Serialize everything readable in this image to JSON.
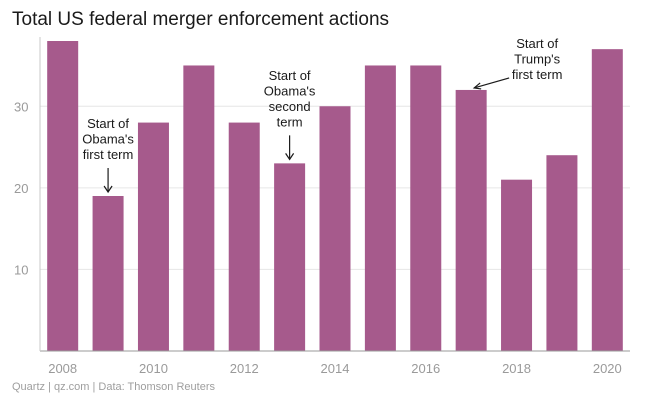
{
  "chart_data": {
    "type": "bar",
    "title": "Total US federal merger enforcement actions",
    "xlabel": "",
    "ylabel": "",
    "categories": [
      "2008",
      "2009",
      "2010",
      "2011",
      "2012",
      "2013",
      "2014",
      "2015",
      "2016",
      "2017",
      "2018",
      "2019",
      "2020"
    ],
    "values": [
      38,
      19,
      28,
      35,
      28,
      23,
      30,
      35,
      35,
      32,
      21,
      24,
      37
    ],
    "ylim": [
      0,
      38
    ],
    "yticks": [
      10,
      20,
      30
    ],
    "xtick_labels": [
      "2008",
      "2010",
      "2012",
      "2014",
      "2016",
      "2018",
      "2020"
    ],
    "grid": true,
    "bar_color": "#a65a8c",
    "annotations": [
      {
        "category": "2009",
        "lines": [
          "Start of",
          "Obama's",
          "first term"
        ],
        "arrow": "down"
      },
      {
        "category": "2013",
        "lines": [
          "Start of",
          "Obama's",
          "second",
          "term"
        ],
        "arrow": "down"
      },
      {
        "category": "2017",
        "lines": [
          "Start of",
          "Trump's",
          "first term"
        ],
        "arrow": "diagonal"
      }
    ]
  },
  "footer": {
    "source": "Quartz | qz.com | Data: Thomson Reuters"
  }
}
